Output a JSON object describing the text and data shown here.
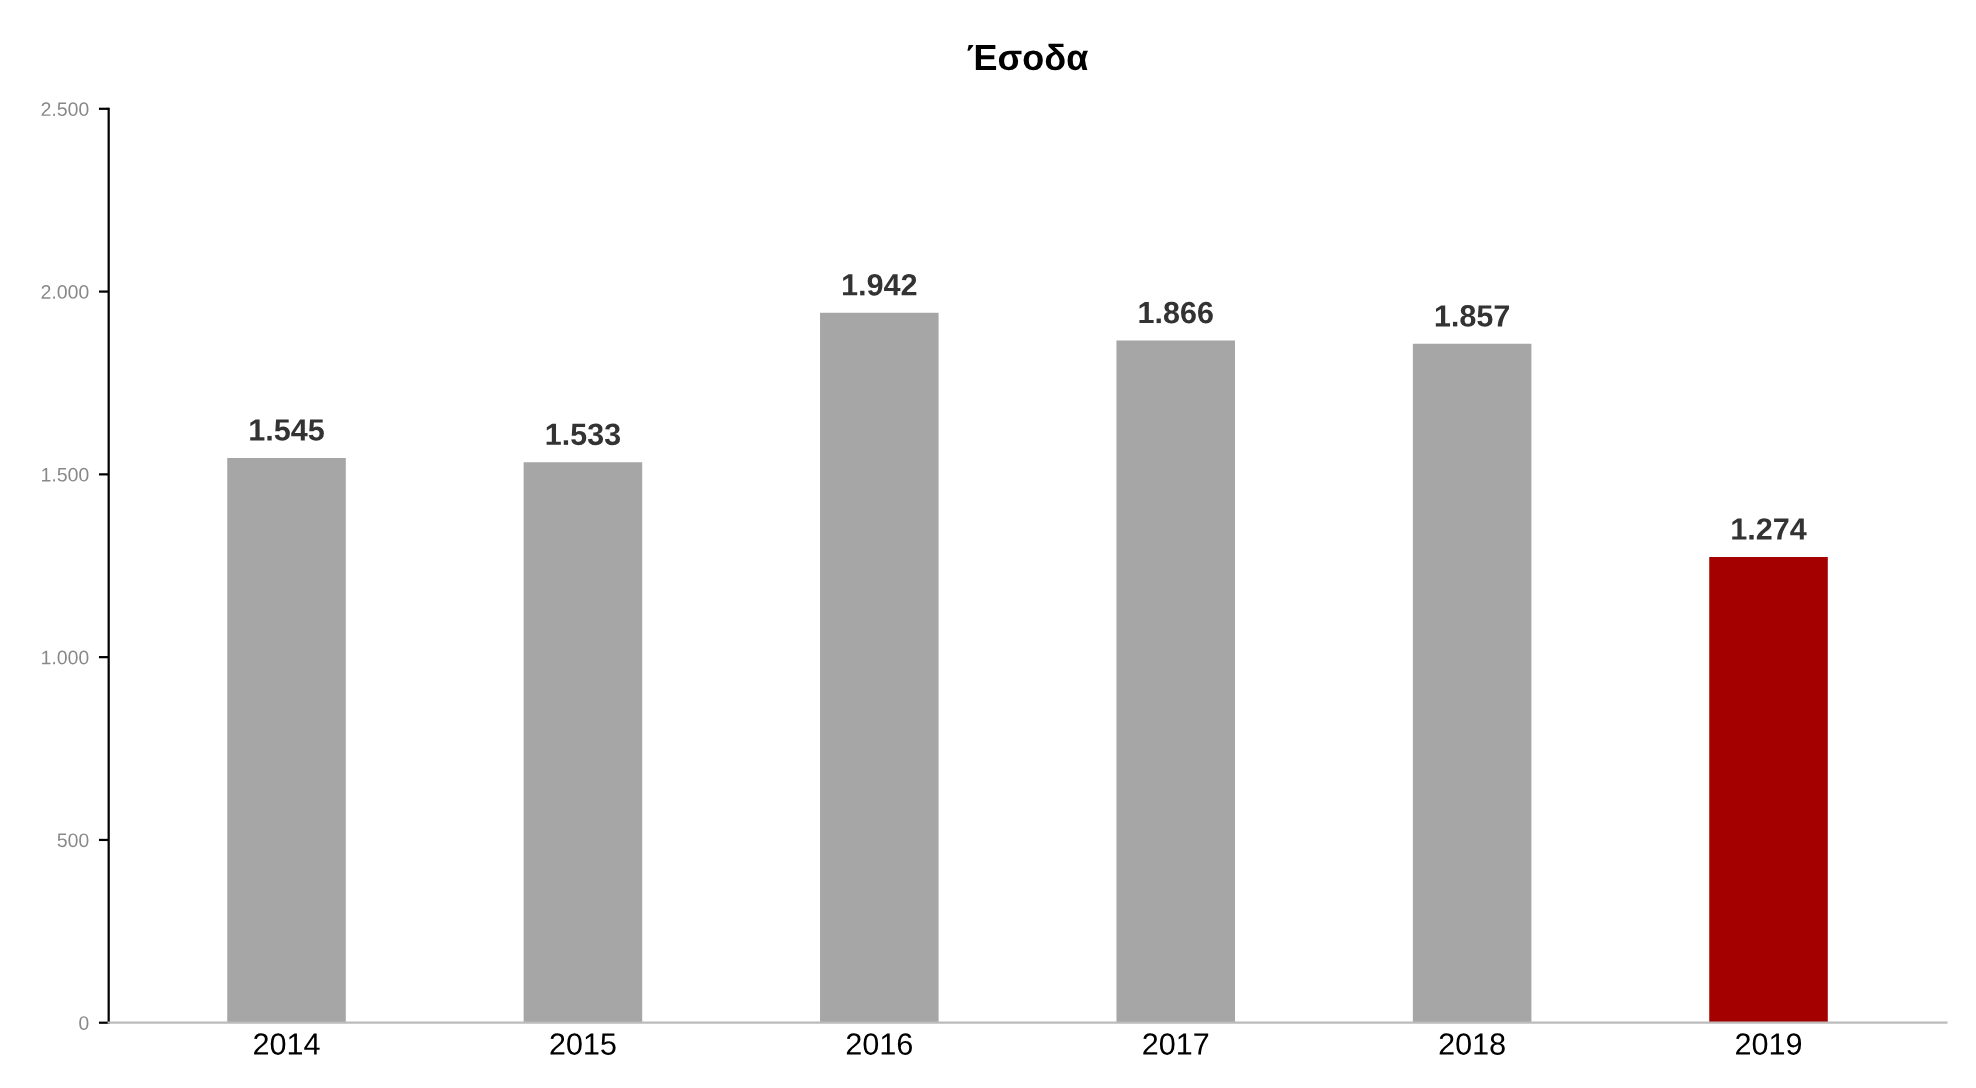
{
  "chart_data": {
    "type": "bar",
    "title": "Έσοδα",
    "categories": [
      "2014",
      "2015",
      "2016",
      "2017",
      "2018",
      "2019"
    ],
    "values": [
      1545,
      1533,
      1942,
      1866,
      1857,
      1274
    ],
    "colors": [
      "#a6a6a6",
      "#a6a6a6",
      "#a6a6a6",
      "#a6a6a6",
      "#a6a6a6",
      "#a50000"
    ],
    "value_labels": [
      "1.545",
      "1.533",
      "1.942",
      "1.866",
      "1.857",
      "1.274"
    ],
    "ylim": [
      0,
      2500
    ],
    "yticks": [
      0,
      500,
      {
        "value": 1000,
        "label": "1.000"
      },
      {
        "value": 1500,
        "label": "1.500"
      },
      {
        "value": 2000,
        "label": "2.000"
      },
      {
        "value": 2500,
        "label": "2.500"
      }
    ],
    "grid": false
  }
}
